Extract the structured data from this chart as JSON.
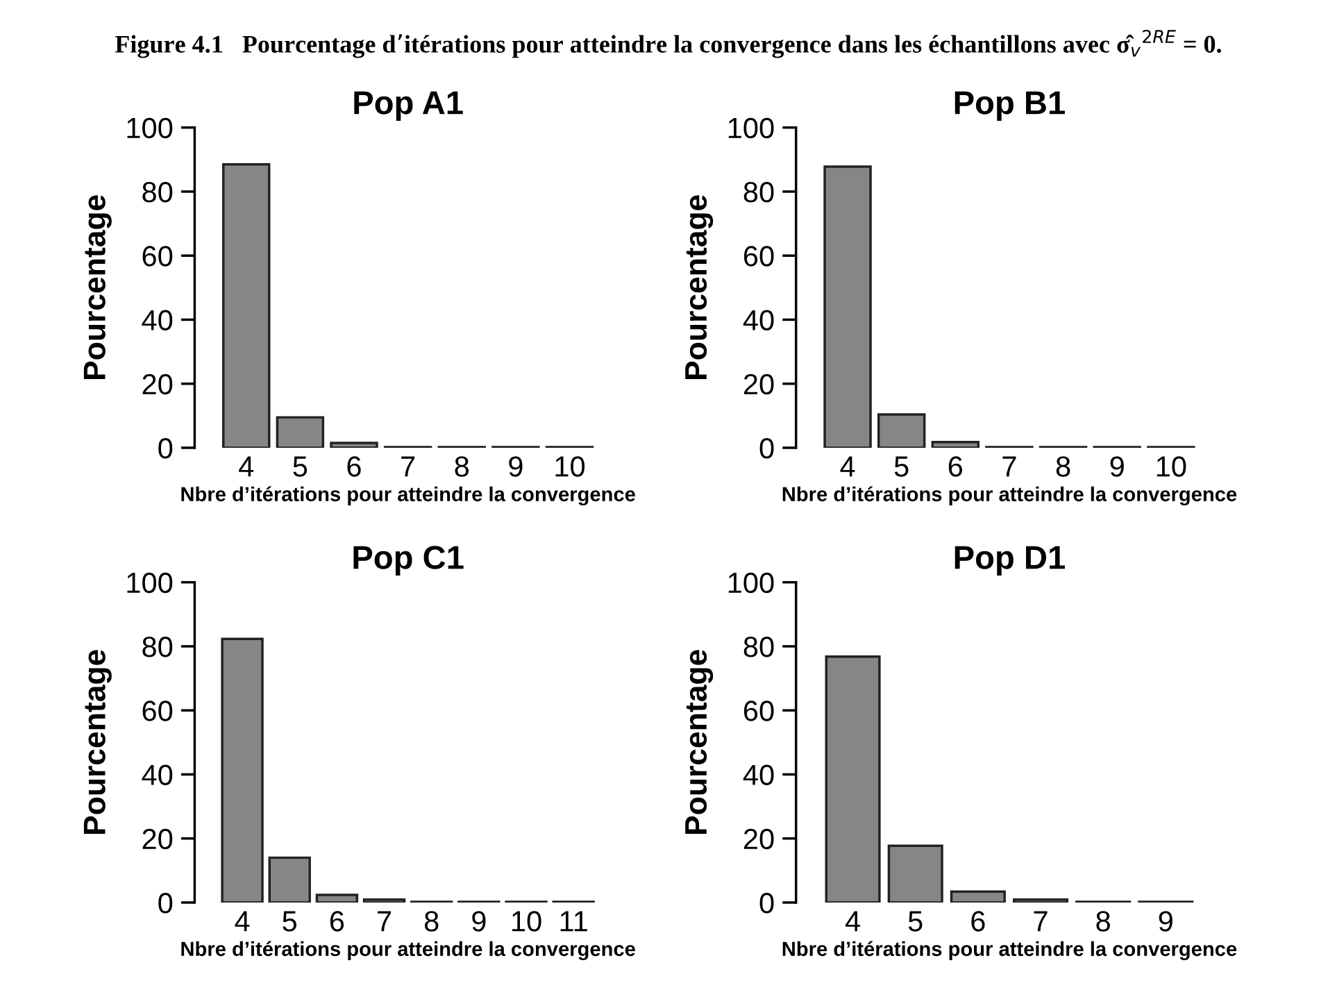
{
  "chart_data": [
    {
      "type": "bar",
      "title": "Pop A1",
      "xlabel": "Nbre d’itérations pour atteindre la convergence",
      "ylabel": "Pourcentage",
      "categories": [
        "4",
        "5",
        "6",
        "7",
        "8",
        "9",
        "10"
      ],
      "values": [
        88.5,
        9.5,
        1.5,
        0.2,
        0.2,
        0.2,
        0.2
      ],
      "color": "#868686",
      "ylim": [
        0,
        100
      ],
      "yticks": [
        0,
        20,
        40,
        60,
        80,
        100
      ],
      "grid": false,
      "legend": false,
      "annotations": [
        "Figure 4.1   Pourcentage d’itérations pour atteindre la convergence dans les échantillons avec σ̂$_{v}$$^{2RE}$ = 0."
      ]
    },
    {
      "type": "bar",
      "title": "Pop B1",
      "xlabel": "Nbre d’itérations pour atteindre la convergence",
      "ylabel": "Pourcentage",
      "categories": [
        "4",
        "5",
        "6",
        "7",
        "8",
        "9",
        "10"
      ],
      "values": [
        87.8,
        10.4,
        1.8,
        0.2,
        0.2,
        0.2,
        0.2
      ],
      "color": "#868686",
      "ylim": [
        0,
        100
      ],
      "yticks": [
        0,
        20,
        40,
        60,
        80,
        100
      ],
      "grid": false,
      "legend": false
    },
    {
      "type": "bar",
      "title": "Pop C1",
      "xlabel": "Nbre d’itérations pour atteindre la convergence",
      "ylabel": "Pourcentage",
      "categories": [
        "4",
        "5",
        "6",
        "7",
        "8",
        "9",
        "10",
        "11"
      ],
      "values": [
        82.3,
        14.0,
        2.4,
        0.9,
        0.2,
        0.2,
        0.2,
        0.2
      ],
      "color": "#868686",
      "ylim": [
        0,
        100
      ],
      "yticks": [
        0,
        20,
        40,
        60,
        80,
        100
      ],
      "grid": false,
      "legend": false
    },
    {
      "type": "bar",
      "title": "Pop D1",
      "xlabel": "Nbre d’itérations pour atteindre la convergence",
      "ylabel": "Pourcentage",
      "categories": [
        "4",
        "5",
        "6",
        "7",
        "8",
        "9"
      ],
      "values": [
        76.8,
        17.7,
        3.4,
        0.9,
        0.2,
        0.2
      ],
      "color": "#868686",
      "ylim": [
        0,
        100
      ],
      "yticks": [
        0,
        20,
        40,
        60,
        80,
        100
      ],
      "grid": false,
      "legend": false
    }
  ]
}
